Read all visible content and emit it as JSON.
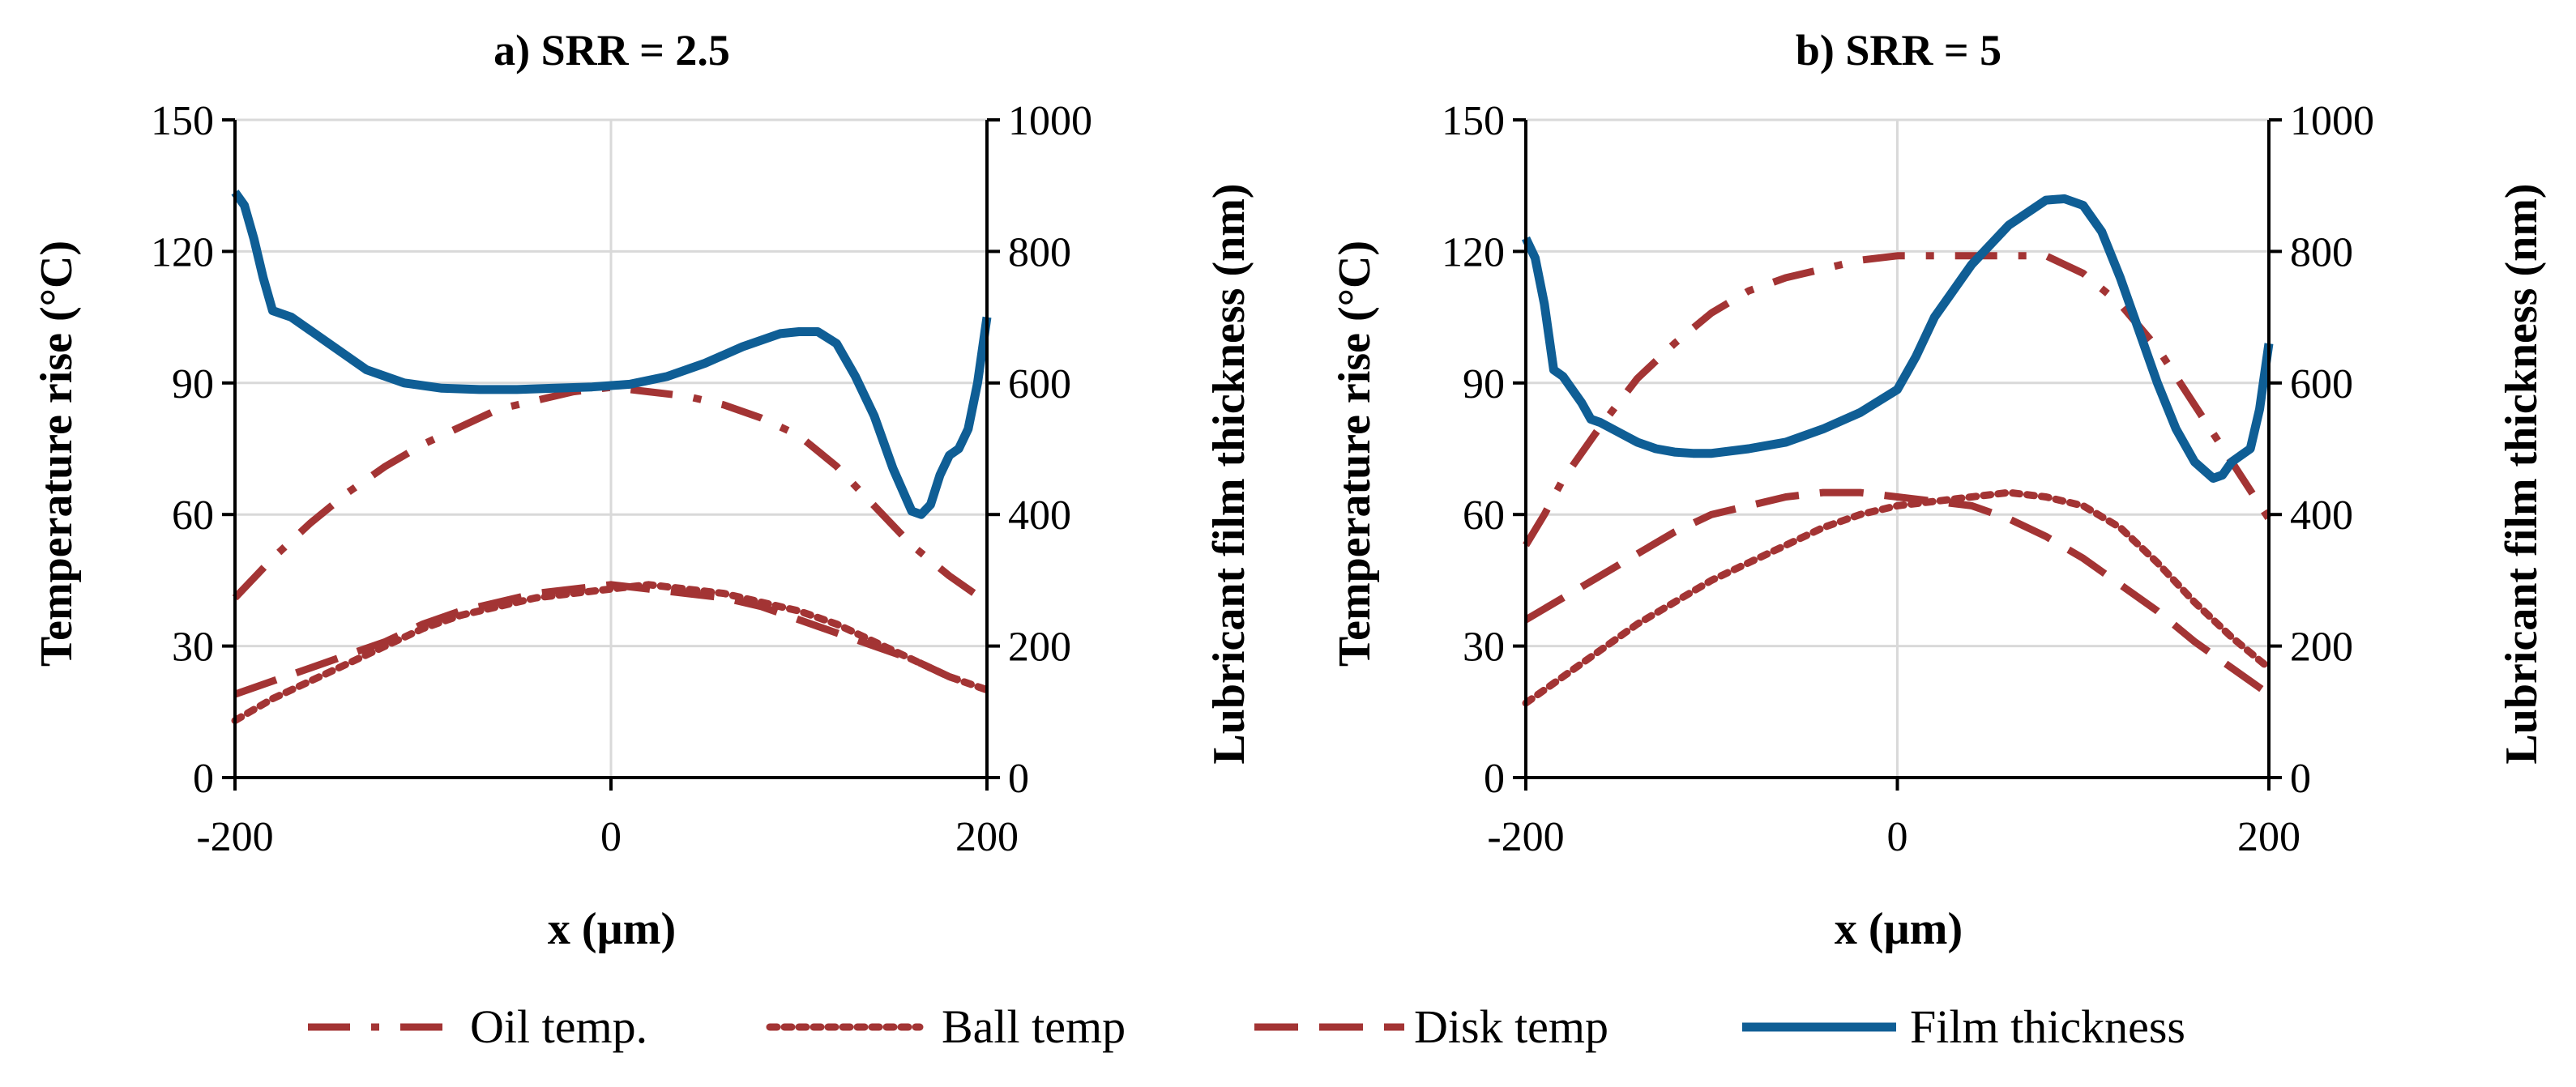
{
  "colors": {
    "temp_series": "#A33434",
    "film_series": "#0F5E95",
    "grid": "#D9D9D9",
    "axis": "#000000"
  },
  "legend": [
    {
      "name": "Oil temp.",
      "style": "dashdot",
      "color": "#A33434"
    },
    {
      "name": "Ball temp",
      "style": "dotted",
      "color": "#A33434"
    },
    {
      "name": "Disk temp",
      "style": "dashed",
      "color": "#A33434"
    },
    {
      "name": "Film thickness",
      "style": "solid",
      "color": "#0F5E95"
    }
  ],
  "chart_data": [
    {
      "type": "line",
      "title": "a) SRR = 2.5",
      "xlabel": "x (µm)",
      "ylabel": "Temperature  rise (°C)",
      "y2label": "Lubricant film thickness (nm)",
      "xlim": [
        -200,
        200
      ],
      "ylim": [
        0,
        150
      ],
      "y2lim": [
        0,
        1000
      ],
      "xticks": [
        "-200",
        "0",
        "200"
      ],
      "yticks": [
        "0",
        "30",
        "60",
        "90",
        "120",
        "150"
      ],
      "y2ticks": [
        "0",
        "200",
        "400",
        "600",
        "800",
        "1000"
      ],
      "grid": true,
      "series": [
        {
          "name": "Oil temp.",
          "axis": "left",
          "x": [
            -200,
            -180,
            -160,
            -140,
            -120,
            -100,
            -80,
            -60,
            -40,
            -20,
            0,
            20,
            40,
            60,
            80,
            100,
            120,
            140,
            160,
            180,
            200
          ],
          "y": [
            41,
            50,
            58,
            65,
            71,
            76,
            80,
            84,
            86,
            88,
            89,
            88,
            87,
            85,
            82,
            78,
            71,
            62,
            53,
            46,
            40
          ]
        },
        {
          "name": "Ball temp",
          "axis": "left",
          "x": [
            -200,
            -180,
            -160,
            -140,
            -120,
            -100,
            -80,
            -60,
            -40,
            -20,
            0,
            20,
            40,
            60,
            80,
            100,
            120,
            140,
            160,
            180,
            200
          ],
          "y": [
            13,
            18,
            22,
            26,
            30,
            34,
            37,
            39,
            41,
            42,
            43,
            44,
            43,
            42,
            40,
            38,
            35,
            31,
            27,
            23,
            20
          ]
        },
        {
          "name": "Disk temp",
          "axis": "left",
          "x": [
            -200,
            -180,
            -160,
            -140,
            -120,
            -100,
            -80,
            -60,
            -40,
            -20,
            0,
            20,
            40,
            60,
            80,
            100,
            120,
            140,
            160,
            180,
            200
          ],
          "y": [
            19,
            22,
            25,
            28,
            31,
            35,
            38,
            40,
            42,
            43,
            44,
            43,
            42,
            41,
            39,
            36,
            33,
            30,
            27,
            23,
            20
          ]
        },
        {
          "name": "Film thickness",
          "axis": "right",
          "x": [
            -200,
            -195,
            -190,
            -185,
            -180,
            -170,
            -150,
            -130,
            -110,
            -90,
            -70,
            -50,
            -30,
            -10,
            10,
            30,
            50,
            70,
            90,
            100,
            110,
            120,
            130,
            140,
            150,
            160,
            165,
            170,
            175,
            180,
            185,
            190,
            195,
            200
          ],
          "y": [
            890,
            870,
            820,
            760,
            710,
            700,
            660,
            620,
            600,
            592,
            590,
            590,
            592,
            594,
            598,
            610,
            630,
            655,
            675,
            678,
            678,
            660,
            610,
            550,
            470,
            405,
            400,
            415,
            460,
            490,
            500,
            530,
            600,
            700
          ]
        }
      ]
    },
    {
      "type": "line",
      "title": "b) SRR = 5",
      "xlabel": "x (µm)",
      "ylabel": "Temperature  rise (°C)",
      "y2label": "Lubricant film thickness (nm)",
      "xlim": [
        -200,
        200
      ],
      "ylim": [
        0,
        150
      ],
      "y2lim": [
        0,
        1000
      ],
      "xticks": [
        "-200",
        "0",
        "200"
      ],
      "yticks": [
        "0",
        "30",
        "60",
        "90",
        "120",
        "150"
      ],
      "y2ticks": [
        "0",
        "200",
        "400",
        "600",
        "800",
        "1000"
      ],
      "grid": true,
      "series": [
        {
          "name": "Oil temp.",
          "axis": "left",
          "x": [
            -200,
            -190,
            -180,
            -160,
            -140,
            -120,
            -100,
            -80,
            -60,
            -40,
            -20,
            0,
            20,
            40,
            60,
            80,
            100,
            120,
            140,
            160,
            180,
            200
          ],
          "y": [
            53,
            60,
            68,
            80,
            91,
            99,
            106,
            111,
            114,
            116,
            118,
            119,
            119,
            119,
            119,
            119,
            115,
            108,
            98,
            85,
            72,
            59
          ]
        },
        {
          "name": "Ball temp",
          "axis": "left",
          "x": [
            -200,
            -180,
            -160,
            -140,
            -120,
            -100,
            -80,
            -60,
            -40,
            -20,
            0,
            20,
            40,
            60,
            80,
            100,
            120,
            140,
            160,
            180,
            200
          ],
          "y": [
            17,
            23,
            29,
            35,
            40,
            45,
            49,
            53,
            57,
            60,
            62,
            63,
            64,
            65,
            64,
            62,
            57,
            49,
            40,
            32,
            25
          ]
        },
        {
          "name": "Disk temp",
          "axis": "left",
          "x": [
            -200,
            -180,
            -160,
            -140,
            -120,
            -100,
            -80,
            -60,
            -40,
            -20,
            0,
            20,
            40,
            60,
            80,
            100,
            120,
            140,
            160,
            180,
            200
          ],
          "y": [
            36,
            41,
            46,
            51,
            56,
            60,
            62,
            64,
            65,
            65,
            64,
            63,
            62,
            59,
            55,
            50,
            44,
            38,
            31,
            25,
            19
          ]
        },
        {
          "name": "Film thickness",
          "axis": "right",
          "x": [
            -200,
            -195,
            -190,
            -185,
            -180,
            -175,
            -170,
            -165,
            -160,
            -150,
            -140,
            -130,
            -120,
            -110,
            -100,
            -80,
            -60,
            -40,
            -20,
            0,
            10,
            20,
            40,
            60,
            80,
            90,
            100,
            110,
            120,
            130,
            140,
            150,
            160,
            170,
            175,
            180,
            185,
            190,
            195,
            200
          ],
          "y": [
            820,
            790,
            720,
            620,
            610,
            590,
            570,
            545,
            540,
            525,
            510,
            500,
            495,
            493,
            493,
            500,
            510,
            530,
            555,
            590,
            640,
            700,
            780,
            840,
            878,
            880,
            870,
            830,
            760,
            680,
            600,
            530,
            480,
            455,
            460,
            480,
            490,
            500,
            560,
            660
          ]
        }
      ]
    }
  ]
}
